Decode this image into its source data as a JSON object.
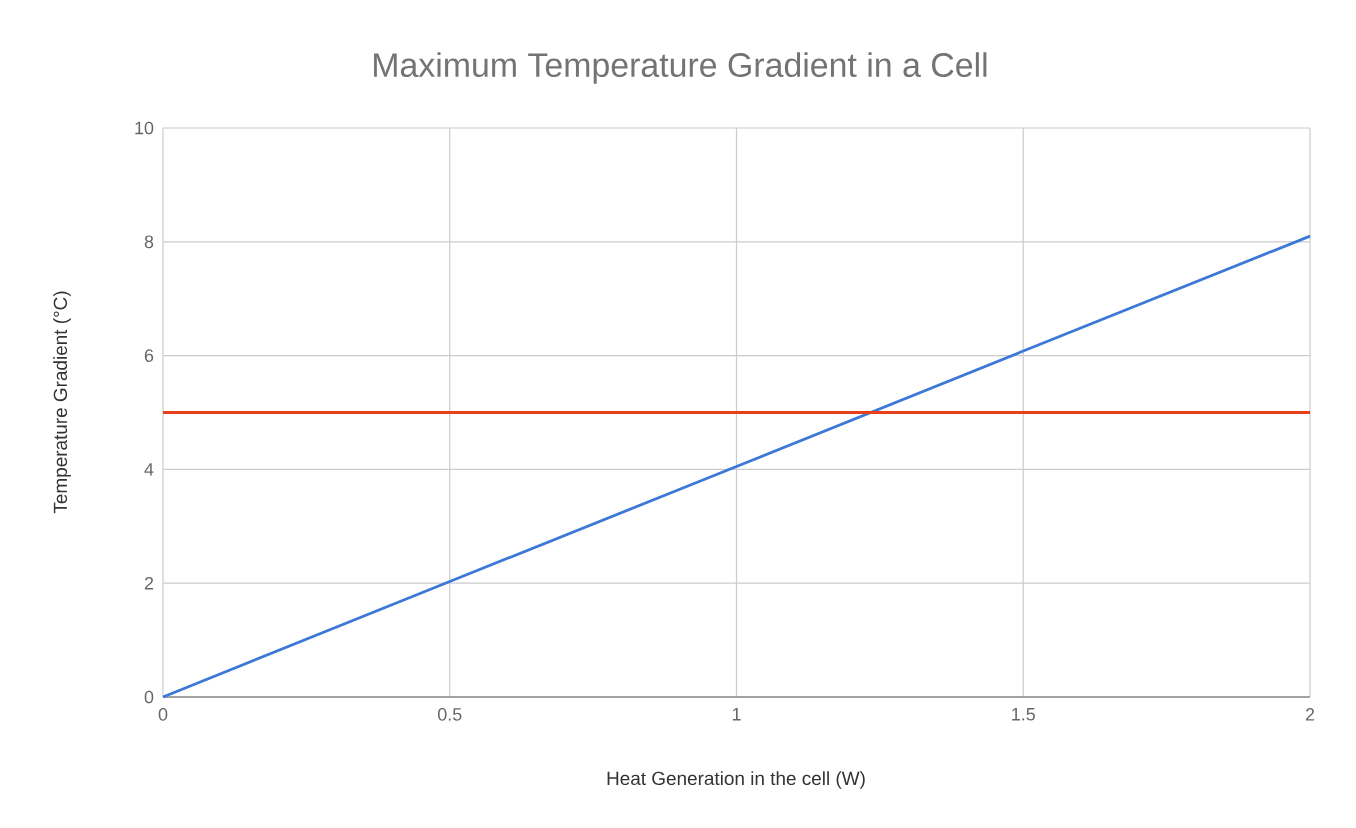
{
  "chart_data": {
    "type": "line",
    "title": "Maximum Temperature Gradient in a Cell",
    "xlabel": "Heat Generation in the cell (W)",
    "ylabel": "Temperature Gradient (°C)",
    "series": [
      {
        "color": "#3c78d8",
        "x": [
          0,
          0.5,
          1,
          1.5,
          2
        ],
        "values": [
          0,
          2.03,
          4.05,
          6.08,
          8.1
        ]
      },
      {
        "color": "#e8401c",
        "x": [
          0,
          2
        ],
        "values": [
          5,
          5
        ]
      }
    ],
    "xlim": [
      0,
      2
    ],
    "xticks": [
      0,
      0.5,
      1,
      1.5,
      2
    ],
    "ylim": [
      0,
      10
    ],
    "yticks": [
      0,
      2,
      4,
      6,
      8,
      10
    ],
    "grid": true,
    "marker": "none",
    "line_style": "solid"
  }
}
